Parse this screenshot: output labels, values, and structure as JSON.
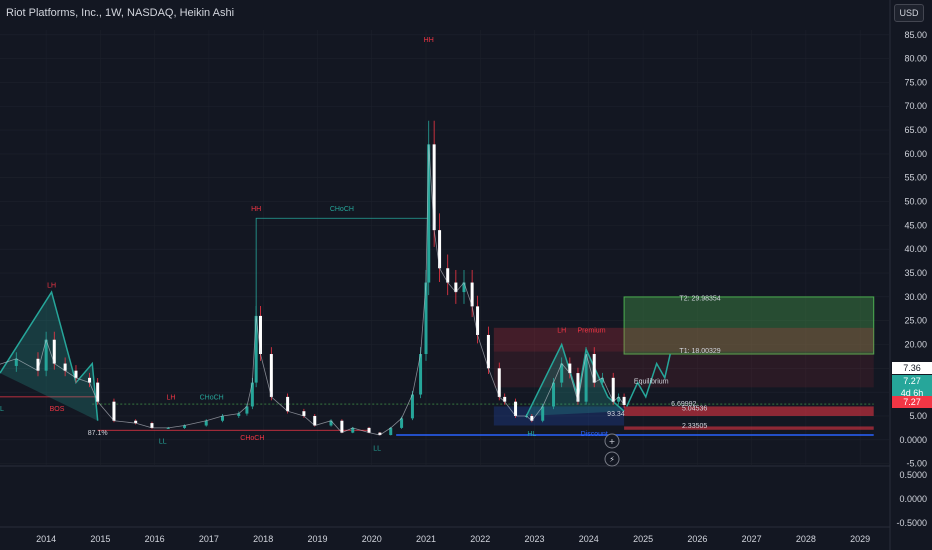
{
  "header": {
    "title": "Riot Platforms, Inc., 1W, NASDAQ, Heikin Ashi",
    "currency_button": "USD"
  },
  "price_tags": {
    "last_white": "7.36",
    "last_green": "7.27",
    "countdown": "4d 6h",
    "red_tag": "7.27"
  },
  "chart_data": {
    "type": "candlestick",
    "title": "Riot Platforms, Inc., 1W, NASDAQ, Heikin Ashi",
    "xlabel": "",
    "ylabel": "",
    "x_ticks": [
      "2014",
      "2015",
      "2016",
      "2017",
      "2018",
      "2019",
      "2020",
      "2021",
      "2022",
      "2023",
      "2024",
      "2025",
      "2026",
      "2027",
      "2028",
      "2029"
    ],
    "y_ticks": [
      "85.00",
      "80.00",
      "75.00",
      "70.00",
      "65.00",
      "60.00",
      "55.00",
      "50.00",
      "45.00",
      "40.00",
      "35.00",
      "30.00",
      "25.00",
      "20.00",
      "15.00",
      "10.00",
      "5.00",
      "0.0000",
      "-5.00"
    ],
    "lower_y_ticks": [
      "0.5000",
      "0.0000",
      "-0.5000"
    ],
    "ylim": [
      -5.5,
      86
    ],
    "price_series": {
      "x": [
        2013.1,
        2013.5,
        2013.9,
        2014.05,
        2014.2,
        2014.4,
        2014.6,
        2014.85,
        2015.0,
        2015.3,
        2015.7,
        2016.0,
        2016.3,
        2016.6,
        2017.0,
        2017.3,
        2017.6,
        2017.75,
        2017.85,
        2017.92,
        2018.0,
        2018.2,
        2018.5,
        2018.8,
        2019.0,
        2019.3,
        2019.5,
        2019.7,
        2020.0,
        2020.2,
        2020.4,
        2020.6,
        2020.8,
        2020.95,
        2021.05,
        2021.1,
        2021.2,
        2021.3,
        2021.45,
        2021.6,
        2021.75,
        2021.9,
        2022.0,
        2022.2,
        2022.4,
        2022.5,
        2022.7,
        2022.9,
        2023.0,
        2023.2,
        2023.4,
        2023.55,
        2023.7,
        2023.85,
        2024.0,
        2024.15,
        2024.3,
        2024.5,
        2024.6,
        2024.7
      ],
      "y": [
        15.5,
        17.0,
        14.5,
        21.0,
        16.0,
        14.5,
        13.0,
        12.0,
        8.0,
        4.0,
        3.5,
        2.5,
        2.5,
        3.0,
        4.0,
        5.0,
        5.5,
        7.0,
        12.0,
        26.0,
        18.0,
        9.0,
        6.0,
        5.0,
        3.0,
        4.0,
        1.5,
        2.5,
        1.5,
        1.0,
        2.5,
        4.5,
        9.5,
        18.0,
        33.0,
        62.0,
        44.0,
        36.0,
        33.0,
        31.0,
        33.0,
        28.0,
        22.0,
        15.0,
        9.0,
        8.0,
        5.0,
        5.0,
        4.0,
        7.0,
        12.0,
        16.0,
        14.0,
        8.0,
        18.0,
        12.0,
        13.0,
        8.0,
        9.0,
        7.3
      ]
    },
    "labels": [
      {
        "text": "HH",
        "x": 2021.1,
        "y": 83.5,
        "color": "#f23645"
      },
      {
        "text": "HH",
        "x": 2017.92,
        "y": 48.0,
        "color": "#f23645"
      },
      {
        "text": "CHoCH",
        "x": 2019.5,
        "y": 48.0,
        "color": "#26a69a"
      },
      {
        "text": "LH",
        "x": 2014.15,
        "y": 32.0,
        "color": "#f23645"
      },
      {
        "text": "BOS",
        "x": 2014.25,
        "y": 6.0,
        "color": "#f23645"
      },
      {
        "text": "LH",
        "x": 2023.55,
        "y": 22.5,
        "color": "#f23645"
      },
      {
        "text": "Premium",
        "x": 2024.1,
        "y": 22.5,
        "color": "#f23645"
      },
      {
        "text": "CHoCH",
        "x": 2017.85,
        "y": 0.0,
        "color": "#f23645"
      },
      {
        "text": "CHoCH",
        "x": 2017.1,
        "y": 8.5,
        "color": "#26a69a"
      },
      {
        "text": "LH",
        "x": 2016.35,
        "y": 8.5,
        "color": "#f23645"
      },
      {
        "text": "LL",
        "x": 2013.2,
        "y": 6.0,
        "color": "#26a69a"
      },
      {
        "text": "LL",
        "x": 2016.2,
        "y": -0.8,
        "color": "#26a69a"
      },
      {
        "text": "LL",
        "x": 2020.15,
        "y": -2.2,
        "color": "#26a69a"
      },
      {
        "text": "HL",
        "x": 2023.0,
        "y": 0.8,
        "color": "#26a69a"
      },
      {
        "text": "Discount",
        "x": 2024.15,
        "y": 0.8,
        "color": "#2962ff"
      },
      {
        "text": "Equilibrium",
        "x": 2025.2,
        "y": 11.8,
        "color": "#d1d4dc"
      },
      {
        "text": "T2: 29.98354",
        "x": 2026.1,
        "y": 29.2,
        "color": "#d1d4dc"
      },
      {
        "text": "T1: 18.00329",
        "x": 2026.1,
        "y": 18.2,
        "color": "#d1d4dc"
      },
      {
        "text": "5.04536",
        "x": 2026.0,
        "y": 6.1,
        "color": "#d1d4dc"
      },
      {
        "text": "2.33505",
        "x": 2026.0,
        "y": 2.5,
        "color": "#d1d4dc"
      },
      {
        "text": "6.69992",
        "x": 2025.8,
        "y": 7.1,
        "color": "#d1d4dc"
      },
      {
        "text": "87.1%",
        "x": 2015.0,
        "y": 1.0,
        "color": "#d1d4dc"
      },
      {
        "text": "93.34",
        "x": 2024.55,
        "y": 5.0,
        "color": "#d1d4dc"
      }
    ]
  },
  "colors": {
    "background": "#131722",
    "up": "#26a69a",
    "down": "#f23645",
    "grid": "#1e222d",
    "axis_text": "#d1d4dc"
  }
}
